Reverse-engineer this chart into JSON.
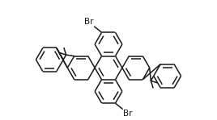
{
  "bg_color": "#ffffff",
  "bond_color": "#1a1a1a",
  "lw": 1.1,
  "dbo": 0.013,
  "font_size": 7.5,
  "fig_w": 2.68,
  "fig_h": 1.49,
  "dpi": 100
}
